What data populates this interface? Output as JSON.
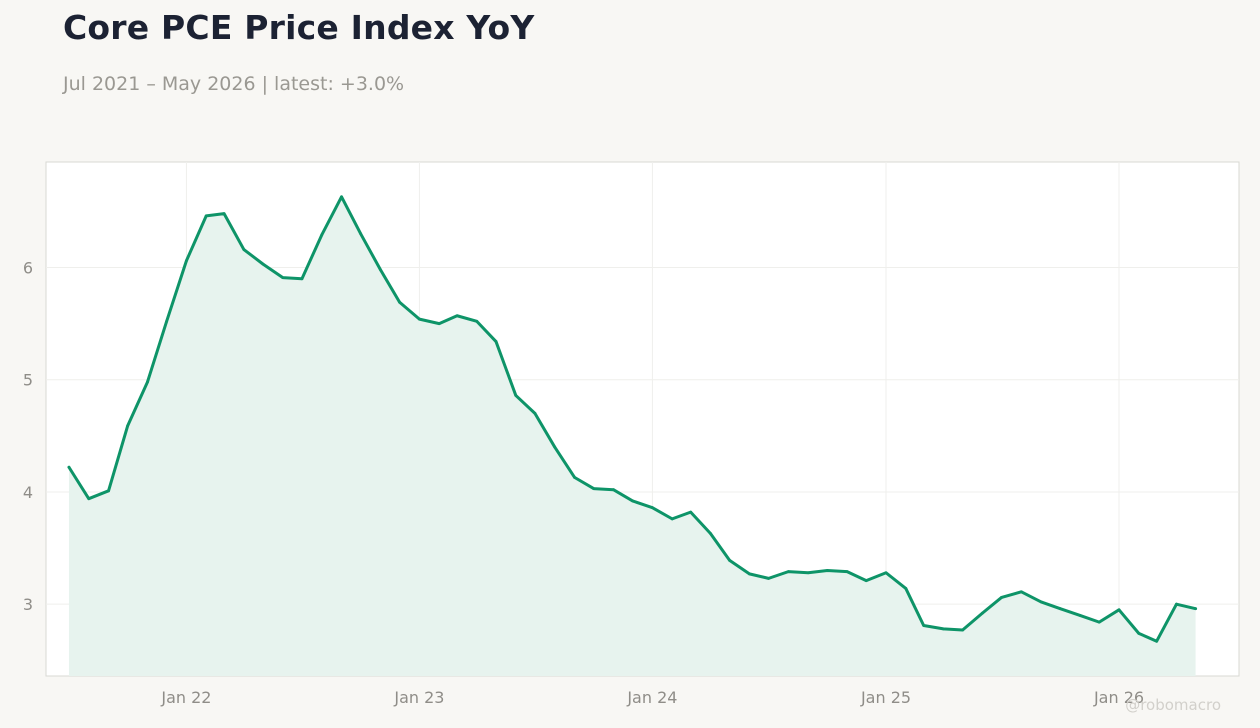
{
  "header": {
    "title": "Core PCE Price Index YoY",
    "subtitle": "Jul 2021 – May 2026 | latest: +3.0%"
  },
  "watermark": "@robomacro",
  "colors": {
    "line": "#0e9468",
    "fill": "#e7f3ee",
    "grid": "#efefec",
    "frame": "#d9d8d3",
    "plot_background": "#ffffff",
    "page_background": "#f8f7f4"
  },
  "chart_data": {
    "type": "area",
    "title": "Core PCE Price Index YoY",
    "subtitle": "Jul 2021 – May 2026 | latest: +3.0%",
    "xlabel": "",
    "ylabel": "",
    "x_ticks": [
      "Jan 22",
      "Jan 23",
      "Jan 24",
      "Jan 25",
      "Jan 26"
    ],
    "y_ticks": [
      3,
      4,
      5,
      6
    ],
    "ylim": [
      2.36,
      6.94
    ],
    "xlim": [
      "2021-05-26",
      "2026-07-08"
    ],
    "grid": true,
    "series": [
      {
        "x": [
          "2021-07",
          "2021-08",
          "2021-09",
          "2021-10",
          "2021-11",
          "2021-12",
          "2022-01",
          "2022-02",
          "2022-03",
          "2022-04",
          "2022-05",
          "2022-06",
          "2022-07",
          "2022-08",
          "2022-09",
          "2022-10",
          "2022-11",
          "2022-12",
          "2023-01",
          "2023-02",
          "2023-03",
          "2023-04",
          "2023-05",
          "2023-06",
          "2023-07",
          "2023-08",
          "2023-09",
          "2023-10",
          "2023-11",
          "2023-12",
          "2024-01",
          "2024-02",
          "2024-03",
          "2024-04",
          "2024-05",
          "2024-06",
          "2024-07",
          "2024-08",
          "2024-09",
          "2024-10",
          "2024-11",
          "2024-12",
          "2025-01",
          "2025-02",
          "2025-03",
          "2025-04",
          "2025-05",
          "2025-06",
          "2025-07",
          "2025-08",
          "2025-09",
          "2025-10",
          "2025-11",
          "2025-12",
          "2026-01",
          "2026-02",
          "2026-03",
          "2026-04",
          "2026-05"
        ],
        "values": [
          4.22,
          3.94,
          4.01,
          4.59,
          4.98,
          5.52,
          6.06,
          6.46,
          6.48,
          6.16,
          6.03,
          5.91,
          5.9,
          6.29,
          6.63,
          6.3,
          5.98,
          5.69,
          5.54,
          5.5,
          5.57,
          5.52,
          5.34,
          4.86,
          4.7,
          4.4,
          4.13,
          4.03,
          4.02,
          3.92,
          3.86,
          3.76,
          3.82,
          3.63,
          3.39,
          3.27,
          3.23,
          3.29,
          3.28,
          3.3,
          3.29,
          3.21,
          3.28,
          3.14,
          2.81,
          2.78,
          2.77,
          2.92,
          3.06,
          3.11,
          3.02,
          2.96,
          2.9,
          2.84,
          2.95,
          2.74,
          2.67,
          3.0,
          2.96
        ]
      }
    ]
  }
}
